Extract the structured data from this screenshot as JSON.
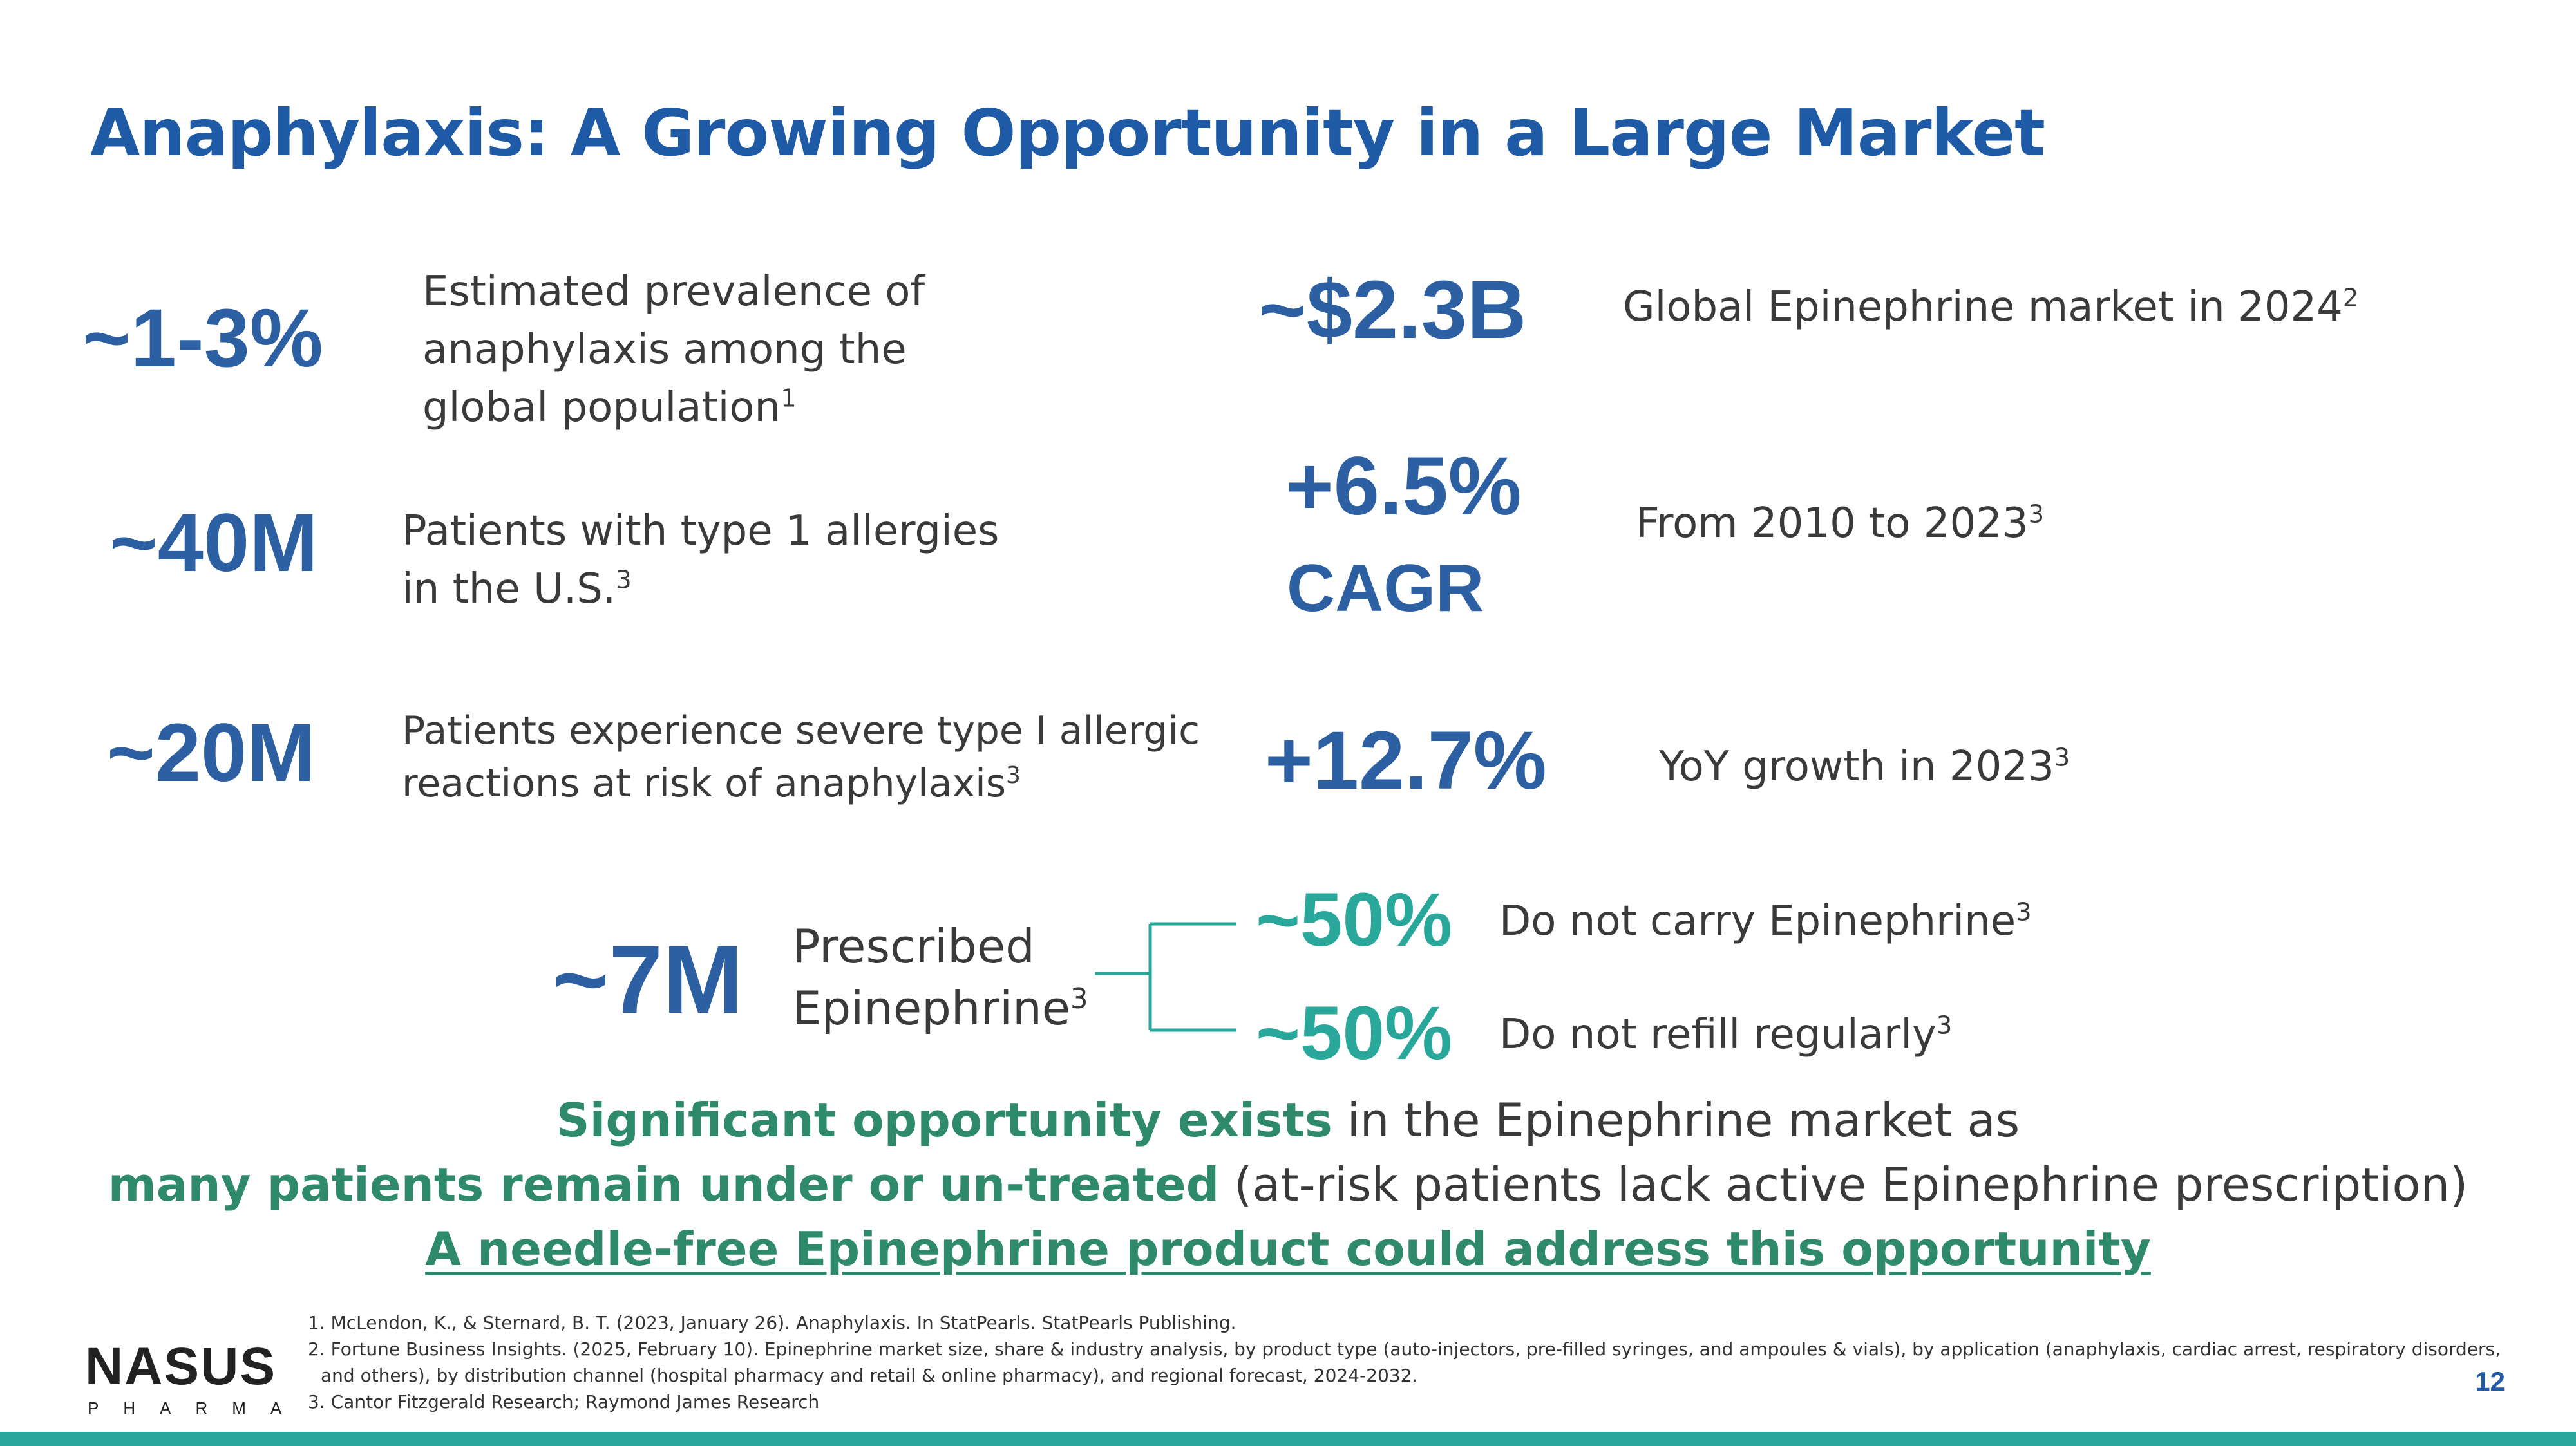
{
  "title": "Anaphylaxis: A Growing Opportunity in a Large Market",
  "stats_left": [
    {
      "value": "~1-3%",
      "lines": [
        "Estimated prevalence of",
        "anaphylaxis among the",
        "global population"
      ],
      "ref": "1"
    },
    {
      "value": "~40M",
      "lines": [
        "Patients with type 1 allergies",
        "in the U.S."
      ],
      "ref": "3"
    },
    {
      "value": "~20M",
      "lines": [
        "Patients experience severe type I allergic",
        "reactions at risk of anaphylaxis"
      ],
      "ref": "3"
    }
  ],
  "stats_right": [
    {
      "value": "~$2.3B",
      "text": "Global Epinephrine market in 2024",
      "ref": "2"
    },
    {
      "value": "+6.5%",
      "value2": "CAGR",
      "text": "From 2010 to 2023",
      "ref": "3"
    },
    {
      "value": "+12.7%",
      "text": "YoY growth in 2023",
      "ref": "3"
    }
  ],
  "prescribed": {
    "value": "~7M",
    "lines": [
      "Prescribed",
      "Epinephrine"
    ],
    "ref": "3",
    "branches": [
      {
        "value": "~50%",
        "text": "Do not carry Epinephrine",
        "ref": "3"
      },
      {
        "value": "~50%",
        "text": "Do not refill regularly",
        "ref": "3"
      }
    ]
  },
  "summary": {
    "line1_bold": "Significant opportunity exists",
    "line1_rest": " in the Epinephrine market as",
    "line2_bold": "many patients remain under or un-treated",
    "line2_rest": " (at-risk patients lack active Epinephrine prescription)",
    "line3": "A needle-free Epinephrine product could address this opportunity"
  },
  "references": [
    "1. McLendon, K., & Sternard, B. T. (2023, January 26). Anaphylaxis. In StatPearls. StatPearls Publishing.",
    "2. Fortune Business Insights. (2025, February 10). Epinephrine market size, share & industry analysis, by product type (auto-injectors, pre-filled syringes, and ampoules & vials), by application (anaphylaxis, cardiac arrest, respiratory disorders,",
    "    and others), by distribution channel (hospital pharmacy and retail & online pharmacy), and regional forecast, 2024-2032.",
    "3. Cantor Fitzgerald Research; Raymond James Research"
  ],
  "logo": {
    "word": "NASUS",
    "sub": "PHARMA"
  },
  "page_number": "12",
  "colors": {
    "title_blue": "#1F5AA6",
    "stat_blue": "#2D5FA3",
    "teal": "#2AA79B",
    "green": "#2E8A6A"
  }
}
